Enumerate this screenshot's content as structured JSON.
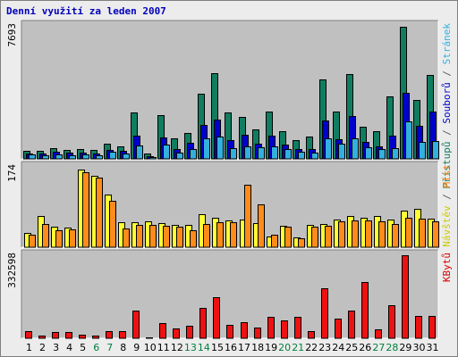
{
  "chart_data": {
    "title": "Denní využití za leden 2007",
    "type": "bar",
    "categories": [
      "1",
      "2",
      "3",
      "4",
      "5",
      "6",
      "7",
      "8",
      "9",
      "10",
      "11",
      "12",
      "13",
      "14",
      "15",
      "16",
      "17",
      "18",
      "19",
      "20",
      "21",
      "22",
      "23",
      "24",
      "25",
      "26",
      "27",
      "28",
      "29",
      "30",
      "31"
    ],
    "weekend_days": [
      "6",
      "7",
      "13",
      "14",
      "20",
      "21",
      "27",
      "28"
    ],
    "colors": {
      "frame_bg": "#ececec",
      "panel_bg": "#c0c0c0",
      "title": "#0000bb",
      "weekday_tick": "#000000",
      "weekend_tick": "#007f3f"
    },
    "panels": [
      {
        "id": "hits",
        "ymax_label": "7693",
        "ymax": 7693,
        "legend": [
          {
            "text": "Přístupů",
            "color": "#117d60"
          },
          {
            "text": " / ",
            "color": "#606060"
          },
          {
            "text": "Souborů",
            "color": "#0000cc"
          },
          {
            "text": " / ",
            "color": "#606060"
          },
          {
            "text": "Stránek",
            "color": "#33b0dd"
          }
        ],
        "series": [
          {
            "name": "Přístupů",
            "color": "#117d60",
            "values": [
              480,
              480,
              620,
              500,
              560,
              540,
              860,
              720,
              2700,
              320,
              2540,
              1180,
              1480,
              3780,
              4970,
              2660,
              2440,
              1690,
              2720,
              1610,
              1070,
              1280,
              4610,
              2760,
              4920,
              1850,
              1610,
              3620,
              7620,
              3410,
              4870
            ]
          },
          {
            "name": "Souborů",
            "color": "#0000cc",
            "values": [
              320,
              320,
              390,
              340,
              380,
              330,
              540,
              470,
              1350,
              180,
              1230,
              570,
              950,
              1940,
              2270,
              1100,
              1390,
              900,
              1360,
              820,
              580,
              560,
              2240,
              1160,
              2500,
              1000,
              740,
              1340,
              3830,
              1890,
              2750
            ]
          },
          {
            "name": "Stránek",
            "color": "#33b0dd",
            "values": [
              250,
              230,
              270,
              220,
              270,
              220,
              400,
              300,
              760,
              120,
              830,
              340,
              560,
              1210,
              1310,
              640,
              700,
              650,
              700,
              560,
              390,
              350,
              1190,
              900,
              1170,
              650,
              560,
              600,
              2170,
              1000,
              1040
            ]
          }
        ]
      },
      {
        "id": "visits",
        "ymax_label": "174",
        "ymax": 174,
        "legend": [
          {
            "text": "Návštěv",
            "color": "#cccc00"
          },
          {
            "text": " / ",
            "color": "#606060"
          },
          {
            "text": "Míst",
            "color": "#ff8000"
          }
        ],
        "series": [
          {
            "name": "Návštěv",
            "color": "#ffff33",
            "values": [
              31,
              68,
              44,
              42,
              168,
              154,
              114,
              55,
              54,
              56,
              52,
              48,
              48,
              71,
              64,
              58,
              60,
              52,
              24,
              46,
              21,
              48,
              50,
              60,
              68,
              63,
              68,
              60,
              80,
              84,
              62
            ]
          },
          {
            "name": "Míst",
            "color": "#ff8c1a",
            "values": [
              28,
              50,
              36,
              38,
              162,
              150,
              100,
              40,
              48,
              48,
              46,
              44,
              36,
              50,
              54,
              55,
              135,
              92,
              28,
              44,
              20,
              45,
              46,
              56,
              58,
              58,
              56,
              50,
              64,
              62,
              57
            ]
          }
        ]
      },
      {
        "id": "kbytes",
        "ymax_label": "332598",
        "ymax": 332598,
        "legend": [
          {
            "text": "KBytů",
            "color": "#dd0000"
          }
        ],
        "series": [
          {
            "name": "KBytů",
            "color": "#ee1111",
            "values": [
              28000,
              12000,
              24000,
              24000,
              16000,
              10000,
              28000,
              28000,
              110000,
              5000,
              62000,
              40000,
              50000,
              120000,
              163000,
              55000,
              65000,
              43000,
              86000,
              70000,
              86000,
              28000,
              200000,
              78000,
              110000,
              226000,
              34000,
              131000,
              332598,
              90000,
              90000
            ]
          }
        ]
      }
    ]
  }
}
